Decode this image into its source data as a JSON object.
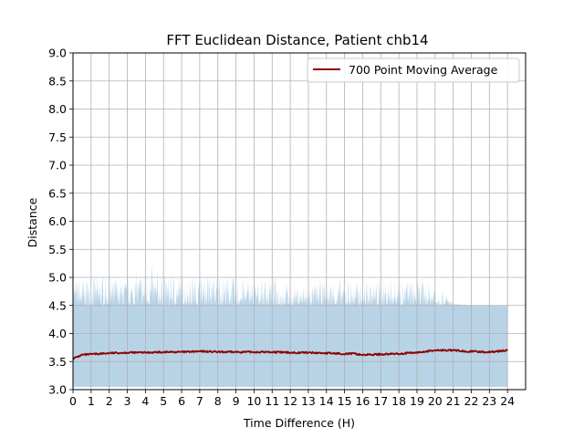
{
  "chart_data": {
    "type": "line",
    "title": "FFT Euclidean Distance, Patient chb14",
    "xlabel": "Time Difference (H)",
    "ylabel": "Distance",
    "xlim": [
      0,
      25
    ],
    "ylim": [
      3.0,
      9.0
    ],
    "x_ticks": [
      "0",
      "1",
      "2",
      "3",
      "4",
      "5",
      "6",
      "7",
      "8",
      "9",
      "10",
      "11",
      "12",
      "13",
      "14",
      "15",
      "16",
      "17",
      "18",
      "19",
      "20",
      "21",
      "22",
      "23",
      "24"
    ],
    "y_ticks": [
      "3.0",
      "3.5",
      "4.0",
      "4.5",
      "5.0",
      "5.5",
      "6.0",
      "6.5",
      "7.0",
      "7.5",
      "8.0",
      "8.5",
      "9.0"
    ],
    "grid": true,
    "legend_position": "upper right",
    "colors": {
      "moving_average": "#8b0000",
      "raw_band": "#b8d3e6",
      "grid": "#b0b0b0"
    },
    "raw_band": {
      "x": [
        0,
        1,
        2,
        3,
        4,
        5,
        6,
        7,
        8,
        9,
        10,
        11,
        12,
        13,
        14,
        15,
        16,
        17,
        18,
        19,
        20,
        21,
        22,
        23,
        24
      ],
      "upper": [
        5.05,
        5.05,
        5.1,
        5.0,
        5.25,
        5.1,
        5.1,
        5.05,
        5.15,
        5.05,
        5.0,
        5.1,
        4.9,
        4.9,
        5.0,
        5.0,
        4.95,
        5.0,
        5.05,
        5.0,
        5.0,
        4.55,
        4.5,
        4.4,
        4.35
      ],
      "lower": [
        3.1,
        3.1,
        3.05,
        3.1,
        3.05,
        3.1,
        3.05,
        3.1,
        3.1,
        3.05,
        3.1,
        3.1,
        3.05,
        3.1,
        3.05,
        3.1,
        3.05,
        3.1,
        3.1,
        3.05,
        3.1,
        3.1,
        3.15,
        3.15,
        3.15
      ],
      "dense_upper": 4.5,
      "dense_lower": 3.05
    },
    "series": [
      {
        "name": "700 Point Moving Average",
        "x": [
          0,
          0.5,
          1,
          2,
          3,
          4,
          5,
          6,
          7,
          7.5,
          8,
          9,
          10,
          11,
          12,
          13,
          14,
          15,
          15.5,
          16,
          17,
          18,
          19,
          20,
          21,
          22,
          23,
          24
        ],
        "y": [
          3.55,
          3.62,
          3.63,
          3.65,
          3.66,
          3.66,
          3.67,
          3.67,
          3.68,
          3.68,
          3.67,
          3.67,
          3.67,
          3.67,
          3.66,
          3.66,
          3.65,
          3.64,
          3.64,
          3.62,
          3.63,
          3.64,
          3.66,
          3.7,
          3.7,
          3.68,
          3.67,
          3.7
        ]
      }
    ]
  }
}
